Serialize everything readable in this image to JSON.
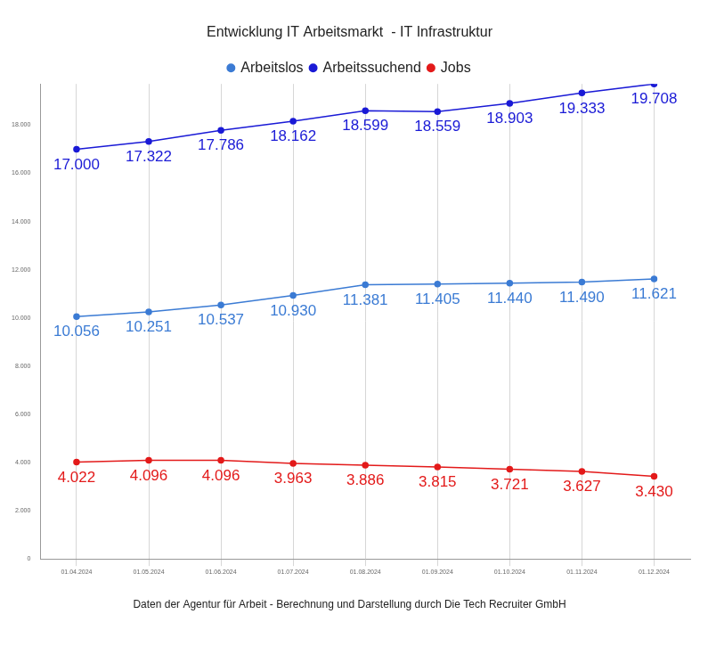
{
  "chart_data": {
    "type": "line",
    "title": "Entwicklung IT Arbeitsmarkt  - IT Infrastruktur",
    "subtitle": "Daten der Agentur für Arbeit - Berechnung und Darstellung durch Die Tech Recruiter GmbH",
    "categories": [
      "01.04.2024",
      "01.05.2024",
      "01.06.2024",
      "01.07.2024",
      "01.08.2024",
      "01.09.2024",
      "01.10.2024",
      "01.11.2024",
      "01.12.2024"
    ],
    "series": [
      {
        "name": "Arbeitslos",
        "color": "#3b7bd4",
        "marker": "circle",
        "values": [
          10056,
          10251,
          10537,
          10930,
          11381,
          11405,
          11440,
          11490,
          11621
        ],
        "value_labels": [
          "10.056",
          "10.251",
          "10.537",
          "10.930",
          "11.381",
          "11.405",
          "11.440",
          "11.490",
          "11.621"
        ]
      },
      {
        "name": "Arbeitssuchend",
        "color": "#1a1ad6",
        "marker": "circle",
        "values": [
          17000,
          17322,
          17786,
          18162,
          18599,
          18559,
          18903,
          19333,
          19708
        ],
        "value_labels": [
          "17.000",
          "17.322",
          "17.786",
          "18.162",
          "18.599",
          "18.559",
          "18.903",
          "19.333",
          "19.708"
        ]
      },
      {
        "name": "Jobs",
        "color": "#e31a1a",
        "marker": "circle",
        "values": [
          4022,
          4096,
          4096,
          3963,
          3886,
          3815,
          3721,
          3627,
          3430
        ],
        "value_labels": [
          "4.022",
          "4.096",
          "4.096",
          "3.963",
          "3.886",
          "3.815",
          "3.721",
          "3.627",
          "3.430"
        ]
      }
    ],
    "ylim": [
      0,
      19708
    ],
    "yticks": [
      0,
      {
        "value": 2000,
        "label": "2.000"
      },
      {
        "value": 4000,
        "label": "4.000"
      },
      {
        "value": 6000,
        "label": "6.000"
      },
      {
        "value": 8000,
        "label": "8.000"
      },
      {
        "value": 10000,
        "label": "10.000"
      },
      {
        "value": 12000,
        "label": "12.000"
      },
      {
        "value": 14000,
        "label": "14.000"
      },
      {
        "value": 16000,
        "label": "16.000"
      },
      {
        "value": 18000,
        "label": "18.000"
      }
    ],
    "grid": true,
    "legend": "top",
    "data_labels": true
  }
}
